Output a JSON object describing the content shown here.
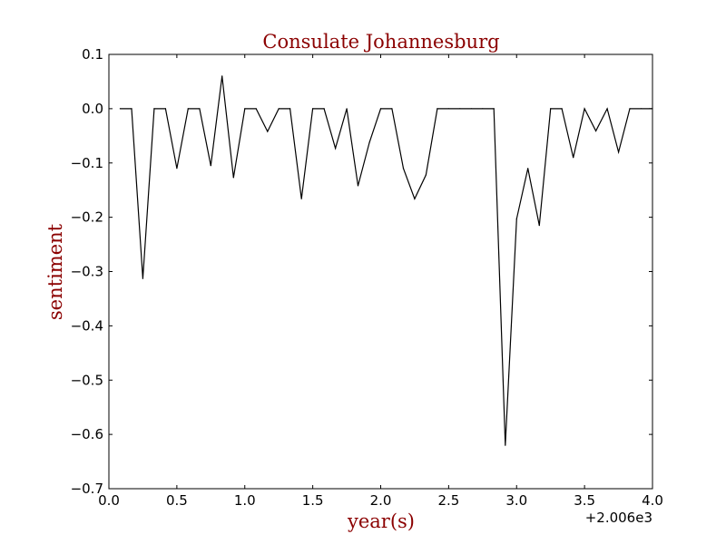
{
  "chart_data": {
    "type": "line",
    "title": "Consulate Johannesburg",
    "xlabel": "year(s)",
    "ylabel": "sentiment",
    "x_offset_label": "+2.006e3",
    "xlim": [
      0.0,
      4.0
    ],
    "ylim": [
      -0.7,
      0.1
    ],
    "x_ticks": [
      0.0,
      0.5,
      1.0,
      1.5,
      2.0,
      2.5,
      3.0,
      3.5,
      4.0
    ],
    "x_tick_labels": [
      "0.0",
      "0.5",
      "1.0",
      "1.5",
      "2.0",
      "2.5",
      "3.0",
      "3.5",
      "4.0"
    ],
    "y_ticks": [
      0.1,
      0.0,
      -0.1,
      -0.2,
      -0.3,
      -0.4,
      -0.5,
      -0.6,
      -0.7
    ],
    "y_tick_labels": [
      "0.1",
      "0.0",
      "−0.1",
      "−0.2",
      "−0.3",
      "−0.4",
      "−0.5",
      "−0.6",
      "−0.7"
    ],
    "grid": false,
    "line_color": "#000000",
    "title_color": "#8b0000",
    "series": [
      {
        "x": [
          0.083,
          0.167,
          0.25,
          0.333,
          0.417,
          0.5,
          0.583,
          0.667,
          0.75,
          0.833,
          0.917,
          1.0,
          1.083,
          1.167,
          1.25,
          1.333,
          1.417,
          1.5,
          1.583,
          1.667,
          1.75,
          1.833,
          1.917,
          2.0,
          2.083,
          2.167,
          2.25,
          2.333,
          2.417,
          2.5,
          2.583,
          2.667,
          2.75,
          2.833,
          2.917,
          3.0,
          3.083,
          3.167,
          3.25,
          3.333,
          3.417,
          3.5,
          3.583,
          3.667,
          3.75,
          3.833,
          3.917,
          4.0
        ],
        "y": [
          0.0,
          0.0,
          -0.313,
          0.0,
          0.0,
          -0.11,
          0.0,
          0.0,
          -0.105,
          0.06,
          -0.127,
          0.0,
          0.0,
          -0.042,
          0.0,
          0.0,
          -0.166,
          0.0,
          0.0,
          -0.073,
          0.0,
          -0.142,
          -0.062,
          0.0,
          0.0,
          -0.11,
          -0.166,
          -0.122,
          0.0,
          0.0,
          0.0,
          0.0,
          0.0,
          0.0,
          -0.62,
          -0.203,
          -0.11,
          -0.215,
          0.0,
          0.0,
          -0.09,
          0.0,
          -0.041,
          0.0,
          -0.08,
          0.0,
          0.0,
          0.0
        ]
      }
    ]
  }
}
